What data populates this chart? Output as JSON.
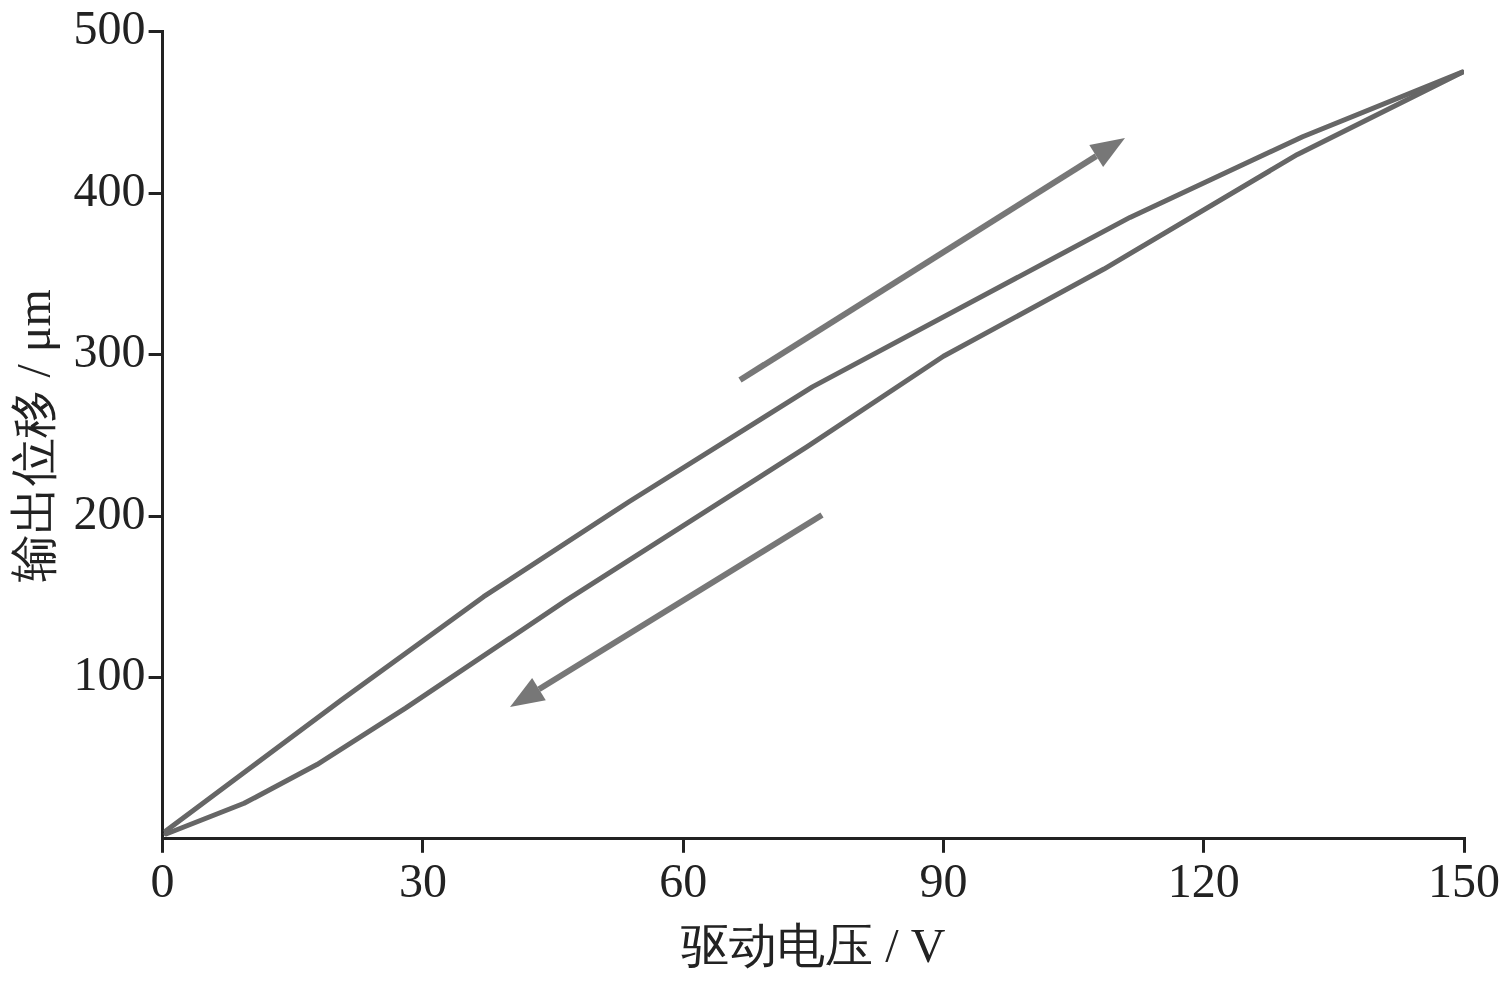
{
  "chart_data": {
    "type": "line",
    "xlabel": "驱动电压 / V",
    "ylabel": "输出位移 / μm",
    "xlim": [
      0,
      150
    ],
    "xticks": [
      0,
      30,
      60,
      90,
      120,
      150
    ],
    "ylim": [
      0,
      500
    ],
    "yticks": [
      100,
      200,
      300,
      400,
      500
    ],
    "grid": false,
    "legend": false,
    "series": [
      {
        "color": "#666666",
        "x": [
          0.4,
          20.6,
          37,
          53.8,
          74.9,
          111.5,
          131.4,
          149.8
        ],
        "values": [
          5,
          86,
          150,
          209,
          280,
          385,
          435,
          475
        ]
      },
      {
        "color": "#666666",
        "x": [
          0.4,
          9.4,
          17.8,
          28,
          46.6,
          74.3,
          90,
          108.5,
          130.8,
          149.8
        ],
        "values": [
          3,
          22,
          46,
          81,
          148,
          243,
          299,
          353,
          424,
          475
        ]
      }
    ]
  }
}
